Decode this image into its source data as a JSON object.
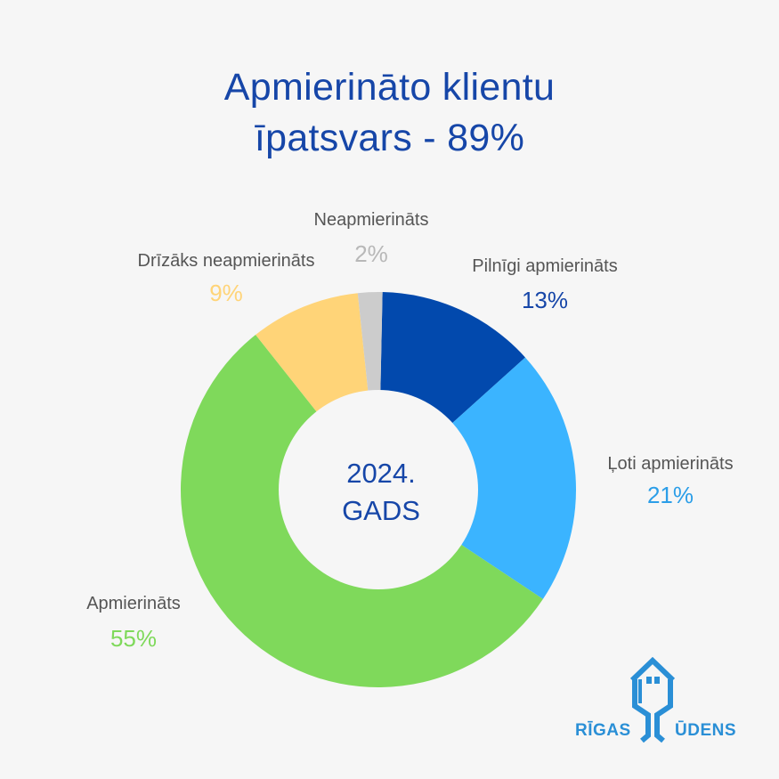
{
  "title": {
    "line1": "Apmierināto klientu",
    "line2": "īpatsvars - 89%"
  },
  "chart_data": {
    "type": "donut",
    "center_label": [
      "2024.",
      "GADS"
    ],
    "slices": [
      {
        "label": "Pilnīgi apmierināts",
        "value": 13,
        "display": "13%",
        "color": "#0249ad",
        "label_color": "#1646a8"
      },
      {
        "label": "Ļoti apmierināts",
        "value": 21,
        "display": "21%",
        "color": "#3bb4ff",
        "label_color": "#2b9ee8"
      },
      {
        "label": "Apmierināts",
        "value": 55,
        "display": "55%",
        "color": "#7fd95b",
        "label_color": "#7fd95b"
      },
      {
        "label": "Drīzāks neapmierināts",
        "value": 9,
        "display": "9%",
        "color": "#ffd478",
        "label_color": "#ffd478"
      },
      {
        "label": "Neapmierināts",
        "value": 2,
        "display": "2%",
        "color": "#cccccc",
        "label_color": "#b8b8b8"
      }
    ]
  },
  "logo": {
    "word_left": "RĪGAS",
    "word_right": "ŪDENS",
    "color": "#2a8fd6"
  }
}
